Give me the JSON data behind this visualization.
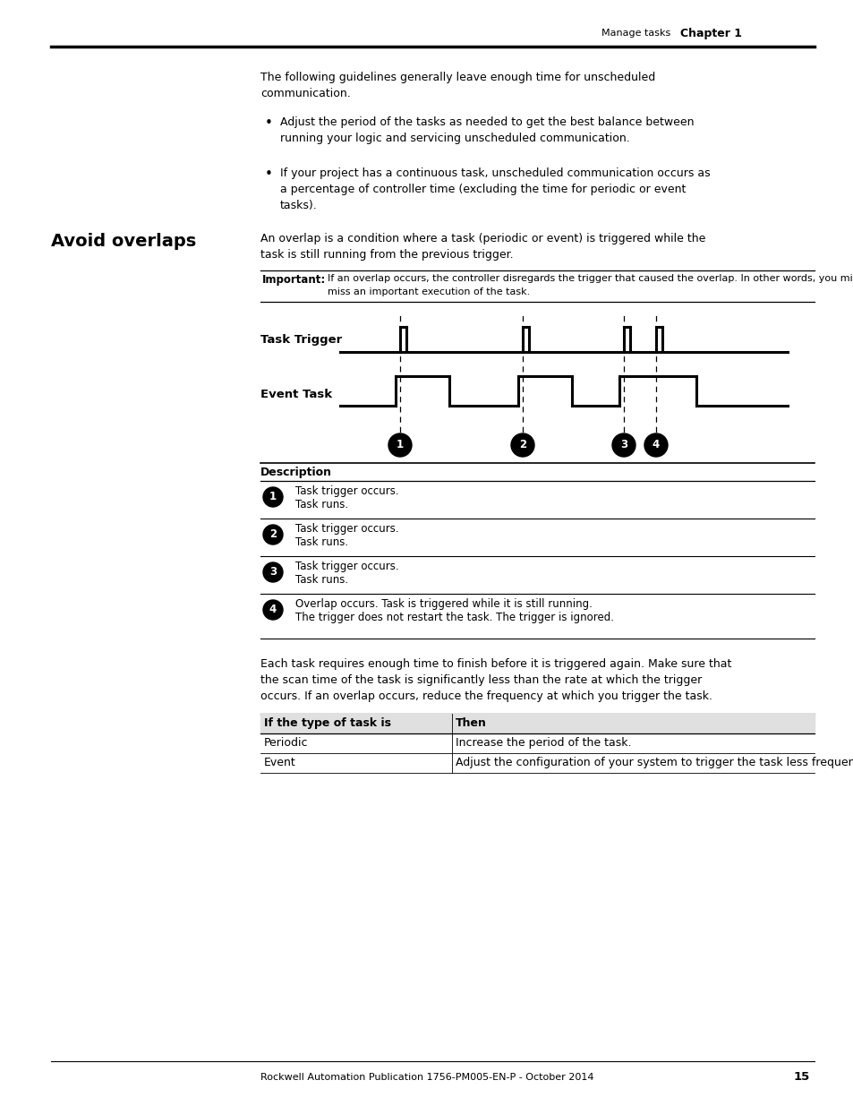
{
  "bg_color": "#ffffff",
  "header_text": "Manage tasks",
  "header_bold": "Chapter 1",
  "section_title": "Avoid overlaps",
  "para1_line1": "The following guidelines generally leave enough time for unscheduled",
  "para1_line2": "communication.",
  "bullet1_line1": "Adjust the period of the tasks as needed to get the best balance between",
  "bullet1_line2": "running your logic and servicing unscheduled communication.",
  "bullet2_line1": "If your project has a continuous task, unscheduled communication occurs as",
  "bullet2_line2": "a percentage of controller time (excluding the time for periodic or event",
  "bullet2_line3": "tasks).",
  "avoid_line1": "An overlap is a condition where a task (periodic or event) is triggered while the",
  "avoid_line2": "task is still running from the previous trigger.",
  "important_label": "Important:",
  "important_text1": "If an overlap occurs, the controller disregards the trigger that caused the overlap. In other words, you might",
  "important_text2": "miss an important execution of the task.",
  "diagram_label_trigger": "Task Trigger",
  "diagram_label_event": "Event Task",
  "desc_header": "Description",
  "desc_rows": [
    {
      "num": "1",
      "line1": "Task trigger occurs.",
      "line2": "Task runs."
    },
    {
      "num": "2",
      "line1": "Task trigger occurs.",
      "line2": "Task runs."
    },
    {
      "num": "3",
      "line1": "Task trigger occurs.",
      "line2": "Task runs."
    },
    {
      "num": "4",
      "line1": "Overlap occurs. Task is triggered while it is still running.",
      "line2": "The trigger does not restart the task. The trigger is ignored."
    }
  ],
  "para_bottom1": "Each task requires enough time to finish before it is triggered again. Make sure that",
  "para_bottom2": "the scan time of the task is significantly less than the rate at which the trigger",
  "para_bottom3": "occurs. If an overlap occurs, reduce the frequency at which you trigger the task.",
  "table_header_col1": "If the type of task is",
  "table_header_col2": "Then",
  "table_rows": [
    [
      "Periodic",
      "Increase the period of the task."
    ],
    [
      "Event",
      "Adjust the configuration of your system to trigger the task less frequently."
    ]
  ],
  "footer_text": "Rockwell Automation Publication 1756-PM005-EN-P - October 2014",
  "footer_page": "15"
}
